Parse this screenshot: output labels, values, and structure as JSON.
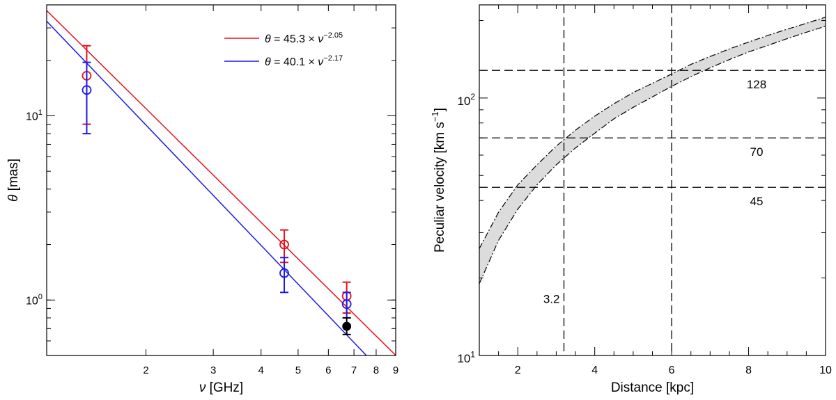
{
  "chart_data": [
    {
      "type": "scatter",
      "xlabel_sym": "ν",
      "xlabel_unit": "[GHz]",
      "ylabel_sym": "θ",
      "ylabel_unit": "[mas]",
      "xscale": "log",
      "yscale": "log",
      "xlim": [
        1.1,
        9
      ],
      "ylim": [
        0.5,
        40
      ],
      "x_ticks": [
        2,
        3,
        4,
        5,
        6,
        7,
        8,
        9
      ],
      "y_ticks": [
        {
          "value": 10,
          "base": "10",
          "exp": "1"
        },
        {
          "value": 1,
          "base": "10",
          "exp": "0"
        }
      ],
      "legend_placement": "top-right",
      "series": [
        {
          "color": "#e8101a",
          "legend": {
            "lhs": "θ = 45.3 ×",
            "sym": "ν",
            "exp": "−2.05"
          },
          "fit": {
            "A": 45.3,
            "k": -2.05
          },
          "points": [
            {
              "x": 1.4,
              "y": 16.5,
              "lo": 9.0,
              "hi": 24.0
            },
            {
              "x": 4.6,
              "y": 2.0,
              "lo": 1.6,
              "hi": 2.4
            },
            {
              "x": 6.7,
              "y": 1.05,
              "lo": 0.85,
              "hi": 1.25
            }
          ]
        },
        {
          "color": "#1a1ae8",
          "legend": {
            "lhs": "θ = 40.1 ×",
            "sym": "ν",
            "exp": "−2.17"
          },
          "fit": {
            "A": 40.1,
            "k": -2.17
          },
          "points": [
            {
              "x": 1.4,
              "y": 13.8,
              "lo": 8.0,
              "hi": 19.5
            },
            {
              "x": 4.6,
              "y": 1.4,
              "lo": 1.1,
              "hi": 1.7
            },
            {
              "x": 6.7,
              "y": 0.95,
              "lo": 0.8,
              "hi": 1.1
            }
          ]
        },
        {
          "color": "#000000",
          "points": [
            {
              "x": 6.7,
              "y": 0.72,
              "lo": 0.65,
              "hi": 0.8,
              "filled": true
            }
          ]
        }
      ]
    },
    {
      "type": "area",
      "xlabel": "Distance [kpc]",
      "ylabel": "Peculiar velocity [km s",
      "ylabel_exp": "−1",
      "ylabel_close": "]",
      "xscale": "linear",
      "yscale": "log",
      "xlim": [
        1,
        10
      ],
      "ylim": [
        10,
        230
      ],
      "x_ticks": [
        2,
        4,
        6,
        8,
        10
      ],
      "y_ticks": [
        {
          "value": 100,
          "base": "10",
          "exp": "2"
        },
        {
          "value": 10,
          "base": "10",
          "exp": "1"
        }
      ],
      "band": {
        "x": [
          1.0,
          1.5,
          2.0,
          2.5,
          3.0,
          3.5,
          4.0,
          4.5,
          5.0,
          5.5,
          6.0,
          6.5,
          7.0,
          7.5,
          8.0,
          8.5,
          9.0,
          9.5,
          10.0
        ],
        "upper": [
          26.0,
          36.0,
          46.0,
          55.0,
          65.0,
          75.0,
          85.0,
          95.0,
          105.0,
          114.0,
          124.0,
          135.0,
          145.0,
          155.0,
          165.0,
          175.0,
          185.0,
          195.0,
          206.0
        ],
        "lower": [
          19.0,
          28.0,
          37.0,
          46.0,
          55.0,
          64.0,
          73.0,
          83.0,
          92.0,
          101.0,
          111.0,
          121.0,
          131.0,
          141.0,
          151.0,
          160.0,
          170.0,
          180.0,
          190.0
        ]
      },
      "hlines": [
        {
          "value": 128,
          "label": "128"
        },
        {
          "value": 70,
          "label": "70"
        },
        {
          "value": 45,
          "label": "45"
        }
      ],
      "vlines": [
        {
          "value": 3.2,
          "label": "3.2"
        },
        {
          "value": 6
        }
      ]
    }
  ]
}
